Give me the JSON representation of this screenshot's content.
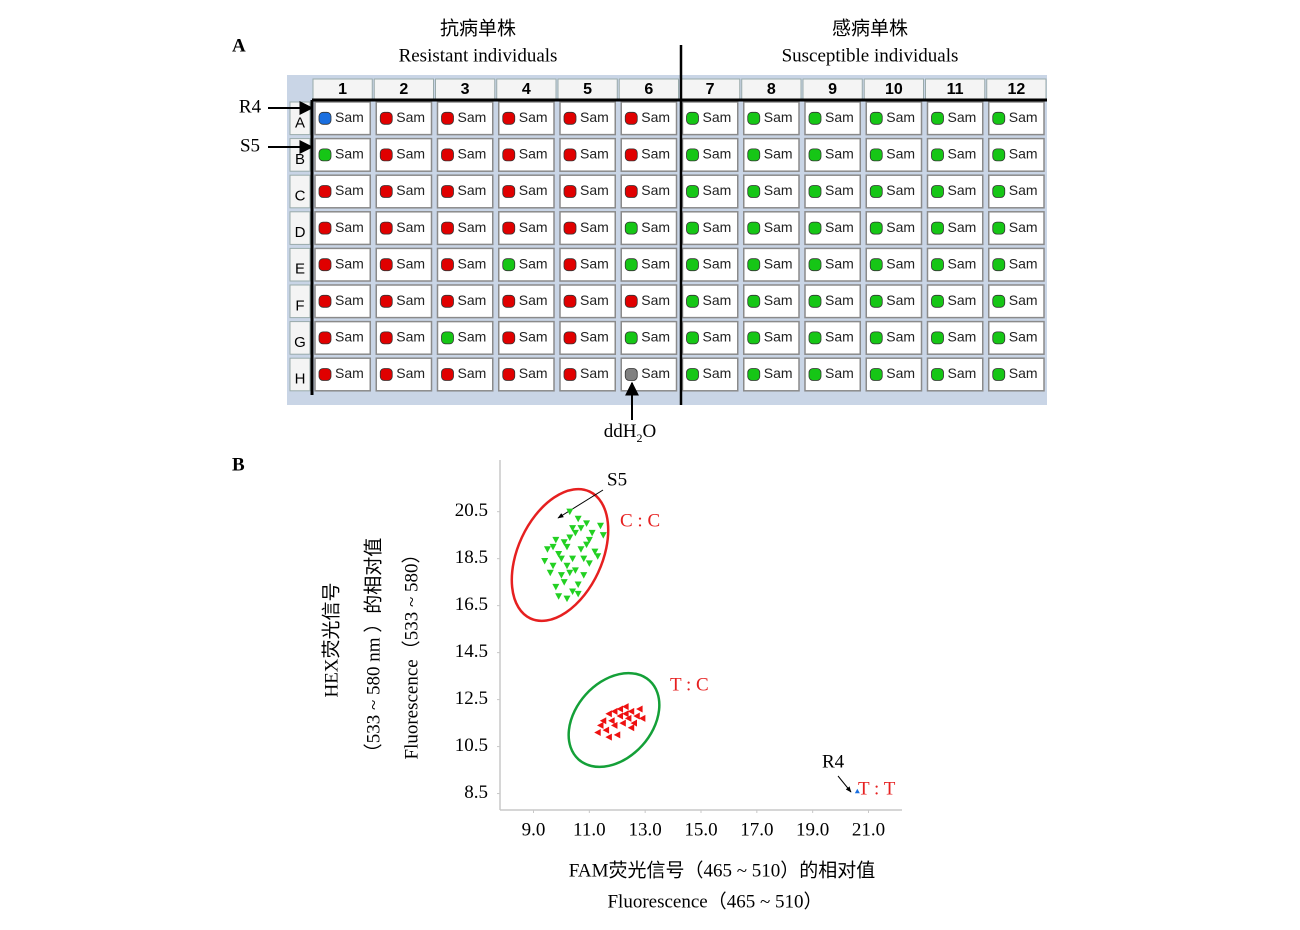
{
  "panel_a": {
    "letter": "A",
    "resistant_zh": "抗病单株",
    "resistant_en": "Resistant individuals",
    "susceptible_zh": "感病单株",
    "susceptible_en": "Susceptible individuals",
    "arrow_r4": "R4",
    "arrow_s5": "S5",
    "ddh2o": {
      "main": "ddH",
      "sub": "2",
      "end": "O"
    },
    "plate": {
      "columns": [
        "1",
        "2",
        "3",
        "4",
        "5",
        "6",
        "7",
        "8",
        "9",
        "10",
        "11",
        "12"
      ],
      "rows": [
        "A",
        "B",
        "C",
        "D",
        "E",
        "F",
        "G",
        "H"
      ],
      "well_text": "Sam",
      "wells": [
        [
          "#1a6fe0",
          "#e00000",
          "#e00000",
          "#e00000",
          "#e00000",
          "#e00000",
          "#16c616",
          "#16c616",
          "#16c616",
          "#16c616",
          "#16c616",
          "#16c616"
        ],
        [
          "#16c616",
          "#e00000",
          "#e00000",
          "#e00000",
          "#e00000",
          "#e00000",
          "#16c616",
          "#16c616",
          "#16c616",
          "#16c616",
          "#16c616",
          "#16c616"
        ],
        [
          "#e00000",
          "#e00000",
          "#e00000",
          "#e00000",
          "#e00000",
          "#e00000",
          "#16c616",
          "#16c616",
          "#16c616",
          "#16c616",
          "#16c616",
          "#16c616"
        ],
        [
          "#e00000",
          "#e00000",
          "#e00000",
          "#e00000",
          "#e00000",
          "#16c616",
          "#16c616",
          "#16c616",
          "#16c616",
          "#16c616",
          "#16c616",
          "#16c616"
        ],
        [
          "#e00000",
          "#e00000",
          "#e00000",
          "#16c616",
          "#e00000",
          "#16c616",
          "#16c616",
          "#16c616",
          "#16c616",
          "#16c616",
          "#16c616",
          "#16c616"
        ],
        [
          "#e00000",
          "#e00000",
          "#e00000",
          "#e00000",
          "#e00000",
          "#e00000",
          "#16c616",
          "#16c616",
          "#16c616",
          "#16c616",
          "#16c616",
          "#16c616"
        ],
        [
          "#e00000",
          "#e00000",
          "#16c616",
          "#e00000",
          "#e00000",
          "#16c616",
          "#16c616",
          "#16c616",
          "#16c616",
          "#16c616",
          "#16c616",
          "#16c616"
        ],
        [
          "#e00000",
          "#e00000",
          "#e00000",
          "#e00000",
          "#e00000",
          "#808080",
          "#16c616",
          "#16c616",
          "#16c616",
          "#16c616",
          "#16c616",
          "#16c616"
        ]
      ]
    }
  },
  "chart_data": {
    "type": "scatter",
    "panel_letter": "B",
    "xlabel": [
      "FAM荧光信号（465 ~ 510）的相对值",
      "Fluorescence（465 ~ 510）"
    ],
    "ylabel": [
      "HEX荧光信号",
      "（533 ~ 580 nm ）的相对值",
      "Fluorescence（533 ~ 580）"
    ],
    "xlim": [
      7.8,
      22.2
    ],
    "ylim": [
      7.8,
      22.7
    ],
    "xticks": [
      {
        "value": 9,
        "label": "9.0"
      },
      {
        "value": 11,
        "label": "11.0"
      },
      {
        "value": 13,
        "label": "13.0"
      },
      {
        "value": 15,
        "label": "15.0"
      },
      {
        "value": 17,
        "label": "17.0"
      },
      {
        "value": 19,
        "label": "19.0"
      },
      {
        "value": 21,
        "label": "21.0"
      }
    ],
    "yticks": [
      8.5,
      10.5,
      12.5,
      14.5,
      16.5,
      18.5,
      20.5
    ],
    "annotations": [
      "C : C",
      "T : C",
      "T : T",
      "S5",
      "R4"
    ],
    "series": [
      {
        "color": "#22d022",
        "marker": "down",
        "x": [
          9.5,
          9.7,
          9.9,
          10.1,
          10.3,
          10.5,
          10.7,
          10.9,
          10.3,
          10.6,
          11.4,
          11.0,
          10.2,
          10.0,
          9.8,
          9.9,
          10.2,
          10.4,
          10.6,
          10.8,
          11.0,
          11.2,
          10.4,
          10.7,
          9.6,
          9.4,
          10.1,
          10.5,
          10.9,
          11.1,
          9.7,
          10.3,
          10.8,
          10.6,
          9.8,
          10.4,
          11.5,
          10.0,
          11.3,
          10.2
        ],
        "y": [
          18.9,
          19.0,
          18.7,
          19.2,
          19.4,
          19.6,
          19.8,
          20.0,
          20.5,
          20.2,
          19.9,
          19.3,
          18.2,
          17.8,
          17.3,
          16.9,
          16.8,
          17.1,
          17.4,
          17.8,
          18.3,
          18.8,
          18.5,
          18.9,
          17.9,
          18.4,
          17.5,
          18.0,
          19.1,
          19.6,
          18.2,
          17.9,
          18.5,
          17.0,
          19.3,
          19.8,
          19.5,
          18.5,
          18.6,
          19.0
        ]
      },
      {
        "color": "#ee1111",
        "marker": "left",
        "x": [
          11.5,
          11.7,
          11.9,
          12.1,
          12.3,
          12.5,
          12.7,
          12.9,
          11.3,
          11.6,
          11.9,
          12.2,
          12.5,
          12.0,
          11.7,
          12.4,
          12.8,
          12.1,
          11.8,
          12.6,
          11.4,
          12.3
        ],
        "y": [
          11.6,
          11.9,
          12.0,
          12.1,
          11.9,
          12.0,
          11.8,
          11.7,
          11.1,
          11.2,
          11.4,
          11.5,
          11.3,
          11.0,
          10.9,
          11.7,
          12.1,
          11.8,
          11.6,
          11.5,
          11.4,
          12.2
        ]
      },
      {
        "color": "#1a6fe0",
        "marker": "up",
        "x": [
          20.6
        ],
        "y": [
          8.6
        ]
      }
    ]
  }
}
